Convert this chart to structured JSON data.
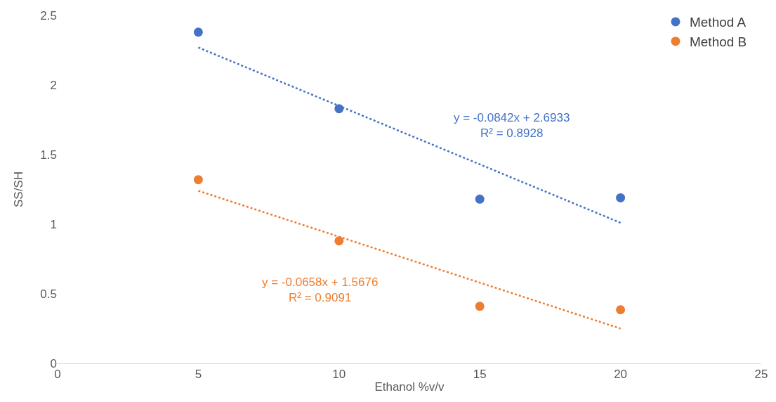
{
  "chart_data": {
    "type": "scatter",
    "xlabel": "Ethanol %v/v",
    "ylabel": "SS/SH",
    "series": [
      {
        "name": "Method A",
        "color": "#4472c4",
        "x": [
          5,
          10,
          15,
          20
        ],
        "values": [
          2.38,
          1.83,
          1.18,
          1.19
        ]
      },
      {
        "name": "Method B",
        "color": "#ed7d31",
        "x": [
          5,
          10,
          15,
          20
        ],
        "values": [
          1.32,
          0.88,
          0.41,
          0.385
        ]
      },
      {
        "type": "line",
        "color": "#4472c4",
        "x": [
          5,
          20
        ],
        "values": [
          2.27,
          1.01
        ],
        "line_style": "dotted",
        "marker": "none"
      },
      {
        "type": "line",
        "color": "#ed7d31",
        "x": [
          5,
          20
        ],
        "values": [
          1.24,
          0.25
        ],
        "line_style": "dotted",
        "marker": "none"
      }
    ],
    "annotations": [
      "y = -0.0842x + 2.6933\nR² = 0.8928",
      "y = -0.0658x + 1.5676\nR² = 0.9091"
    ],
    "xlim": [
      0,
      25
    ],
    "xticks": [
      0,
      5,
      10,
      15,
      20,
      25
    ],
    "ylim": [
      0,
      2.5
    ],
    "yticks": [
      0,
      0.5,
      1,
      1.5,
      2,
      2.5
    ],
    "grid": false,
    "legend": "top right",
    "marker": "circle"
  }
}
